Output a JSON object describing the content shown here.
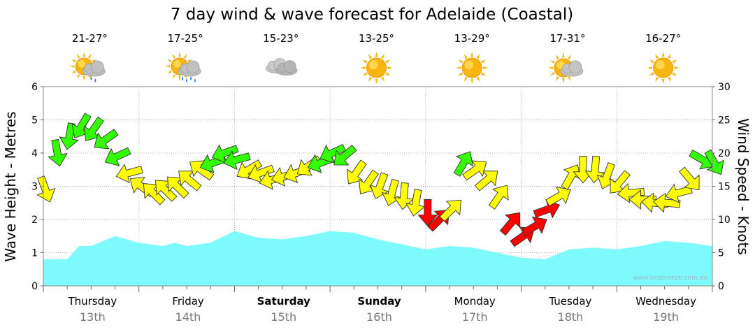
{
  "chart_data": {
    "type": "line",
    "title": "7 day wind & wave forecast for Adelaide (Coastal)",
    "ylabel_left": "Wave Height - Metres",
    "ylabel_right": "Wind Speed - Knots",
    "ylim_left": [
      0,
      6
    ],
    "ylim_right": [
      0,
      30
    ],
    "left_ticks": [
      "0",
      "1",
      "2",
      "3",
      "4",
      "5",
      "6"
    ],
    "right_ticks": [
      "0",
      "5",
      "10",
      "15",
      "20",
      "25",
      "30"
    ],
    "watermark": "www.seabreeze.com.au",
    "grid": true,
    "days": [
      {
        "name": "Thursday",
        "date": "13th",
        "temp": "21-27°",
        "icon": "sun-cloud-rain-icon",
        "bold": false
      },
      {
        "name": "Friday",
        "date": "14th",
        "temp": "17-25°",
        "icon": "sun-cloud-heavy-rain-icon",
        "bold": false
      },
      {
        "name": "Saturday",
        "date": "15th",
        "temp": "15-23°",
        "icon": "cloud-icon",
        "bold": true
      },
      {
        "name": "Sunday",
        "date": "16th",
        "temp": "13-25°",
        "icon": "sun-icon",
        "bold": true
      },
      {
        "name": "Monday",
        "date": "17th",
        "temp": "13-29°",
        "icon": "sun-icon",
        "bold": false
      },
      {
        "name": "Tuesday",
        "date": "18th",
        "temp": "17-31°",
        "icon": "sun-cloud-icon",
        "bold": false
      },
      {
        "name": "Wednesday",
        "date": "19th",
        "temp": "16-27°",
        "icon": "sun-icon",
        "bold": false
      }
    ],
    "wave_series": {
      "name": "Wave Height",
      "x_hours": [
        0,
        6,
        9,
        12,
        18,
        24,
        30,
        33,
        36,
        42,
        48,
        54,
        60,
        66,
        72,
        78,
        84,
        90,
        96,
        102,
        108,
        114,
        120,
        126,
        132,
        138,
        144,
        150,
        156,
        162,
        168,
        174,
        180,
        186,
        189
      ],
      "values": [
        0.8,
        0.8,
        1.2,
        1.2,
        1.5,
        1.3,
        1.2,
        1.3,
        1.2,
        1.3,
        1.65,
        1.45,
        1.4,
        1.5,
        1.65,
        1.6,
        1.4,
        1.25,
        1.1,
        1.2,
        1.15,
        1.0,
        0.85,
        0.8,
        1.1,
        1.15,
        1.1,
        1.2,
        1.35,
        1.3,
        1.2,
        1.1,
        1.3,
        1.35,
        1.3
      ]
    },
    "wind_series": {
      "name": "Wind Speed",
      "x_hours": [
        0,
        3,
        6,
        9,
        12,
        15,
        18,
        21,
        24,
        27,
        30,
        33,
        36,
        39,
        42,
        45,
        48,
        51,
        54,
        57,
        60,
        63,
        66,
        69,
        72,
        75,
        78,
        81,
        84,
        87,
        90,
        93,
        96,
        99,
        102,
        105,
        108,
        111,
        114,
        117,
        120,
        123,
        126,
        129,
        132,
        135,
        138,
        141,
        144,
        147,
        150,
        153,
        156,
        159,
        162,
        165,
        168,
        171,
        174,
        177,
        180,
        183,
        186,
        189
      ],
      "values": [
        14.5,
        20,
        22.5,
        24,
        23.5,
        22,
        19.5,
        17,
        15,
        14,
        14.5,
        15,
        16,
        17.5,
        18.5,
        20,
        19,
        17.5,
        17,
        16,
        16.5,
        17,
        18,
        18.5,
        20,
        19.5,
        17,
        15.5,
        15,
        14,
        13.5,
        12.5,
        11,
        10,
        11.5,
        18.5,
        17.5,
        16,
        13.5,
        9.5,
        7.5,
        9,
        11.5,
        13.5,
        16.5,
        17.5,
        17.5,
        16.5,
        15.5,
        14,
        13,
        12.5,
        12.5,
        14,
        16,
        19,
        18.5,
        17.5,
        16.5,
        15.5,
        13,
        18,
        20.5,
        21.5
      ],
      "directions_to_deg": [
        70,
        80,
        100,
        120,
        125,
        145,
        155,
        165,
        215,
        225,
        225,
        225,
        220,
        215,
        160,
        160,
        165,
        150,
        160,
        165,
        165,
        160,
        145,
        160,
        155,
        140,
        125,
        125,
        110,
        105,
        95,
        100,
        90,
        315,
        315,
        300,
        325,
        320,
        305,
        310,
        325,
        330,
        340,
        330,
        300,
        90,
        95,
        110,
        130,
        175,
        180,
        185,
        185,
        165,
        50,
        30,
        60,
        100,
        115,
        140,
        155,
        45,
        55,
        60
      ]
    },
    "wind_colors": {
      "calm": "#ffff00",
      "moderate": "#33ff00",
      "strong": "#ff0000"
    },
    "wave_color": "#7ef9fc"
  }
}
